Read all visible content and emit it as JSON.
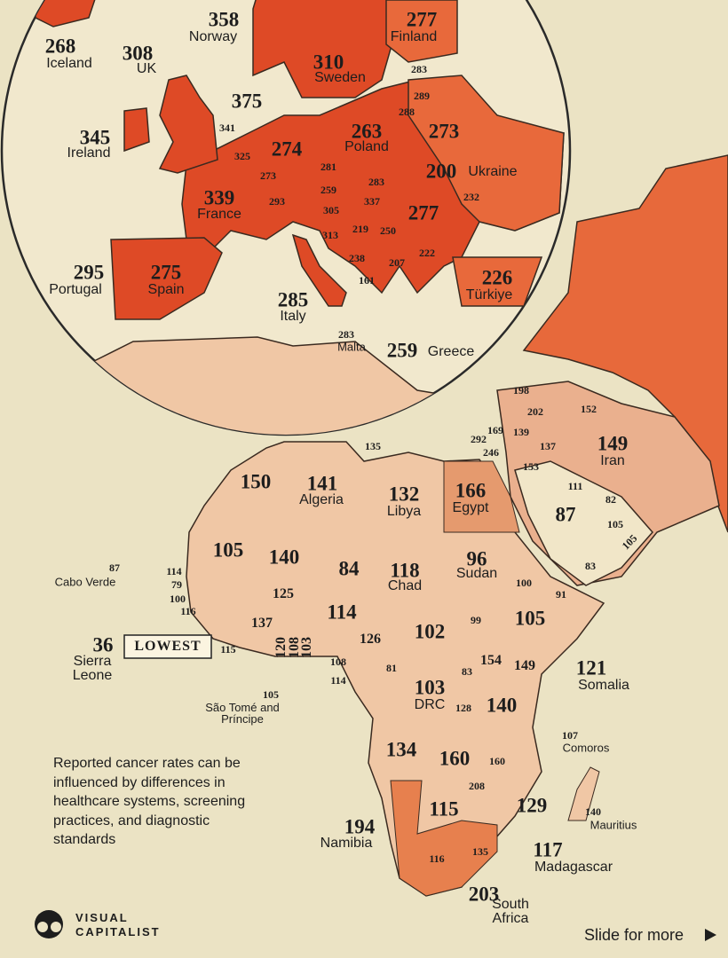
{
  "europe": [
    {
      "value": 268,
      "name": "Iceland"
    },
    {
      "value": 308,
      "name": "UK"
    },
    {
      "value": 358,
      "name": "Norway"
    },
    {
      "value": 310,
      "name": "Sweden"
    },
    {
      "value": 277,
      "name": "Finland"
    },
    {
      "value": 375
    },
    {
      "value": 345,
      "name": "Ireland"
    },
    {
      "value": 263,
      "name": "Poland"
    },
    {
      "value": 273
    },
    {
      "value": 274
    },
    {
      "value": 339,
      "name": "France"
    },
    {
      "value": 200,
      "name": "Ukraine"
    },
    {
      "value": 277
    },
    {
      "value": 295,
      "name": "Portugal"
    },
    {
      "value": 275,
      "name": "Spain"
    },
    {
      "value": 285,
      "name": "Italy"
    },
    {
      "value": 226,
      "name": "Türkiye"
    },
    {
      "value": 283,
      "name": "Malta"
    },
    {
      "value": 259,
      "name": "Greece"
    },
    {
      "value": 283
    },
    {
      "value": 289
    },
    {
      "value": 288
    },
    {
      "value": 341
    },
    {
      "value": 325
    },
    {
      "value": 273
    },
    {
      "value": 281
    },
    {
      "value": 283
    },
    {
      "value": 259
    },
    {
      "value": 293
    },
    {
      "value": 337
    },
    {
      "value": 305
    },
    {
      "value": 232
    },
    {
      "value": 219
    },
    {
      "value": 250
    },
    {
      "value": 313
    },
    {
      "value": 222
    },
    {
      "value": 238
    },
    {
      "value": 207
    },
    {
      "value": 161
    }
  ],
  "africa_middle_east": [
    {
      "value": 198
    },
    {
      "value": 202
    },
    {
      "value": 152
    },
    {
      "value": 169
    },
    {
      "value": 139
    },
    {
      "value": 292
    },
    {
      "value": 246
    },
    {
      "value": 137
    },
    {
      "value": 153
    },
    {
      "value": 149,
      "name": "Iran"
    },
    {
      "value": 111
    },
    {
      "value": 82
    },
    {
      "value": 87
    },
    {
      "value": 105
    },
    {
      "value": 105
    },
    {
      "value": 83
    },
    {
      "value": 135
    },
    {
      "value": 150
    },
    {
      "value": 141,
      "name": "Algeria"
    },
    {
      "value": 132,
      "name": "Libya"
    },
    {
      "value": 166,
      "name": "Egypt"
    },
    {
      "value": 105
    },
    {
      "value": 140
    },
    {
      "value": 84
    },
    {
      "value": 118,
      "name": "Chad"
    },
    {
      "value": 96,
      "name": "Sudan"
    },
    {
      "value": 87,
      "name": "Cabo Verde"
    },
    {
      "value": 114
    },
    {
      "value": 79
    },
    {
      "value": 100
    },
    {
      "value": 116
    },
    {
      "value": 100
    },
    {
      "value": 91
    },
    {
      "value": 125
    },
    {
      "value": 137
    },
    {
      "value": 114
    },
    {
      "value": 99
    },
    {
      "value": 105
    },
    {
      "value": 36,
      "name": "Sierra Leone"
    },
    {
      "value": 115
    },
    {
      "value": 120
    },
    {
      "value": 108
    },
    {
      "value": 103
    },
    {
      "value": 126
    },
    {
      "value": 102
    },
    {
      "value": 121,
      "name": "Somalia"
    },
    {
      "value": 108
    },
    {
      "value": 114
    },
    {
      "value": 81
    },
    {
      "value": 83
    },
    {
      "value": 154
    },
    {
      "value": 149
    },
    {
      "value": 103,
      "name": "DRC"
    },
    {
      "value": 128
    },
    {
      "value": 140
    },
    {
      "value": 105,
      "name": "São Tomé and Príncipe"
    },
    {
      "value": 107,
      "name": "Comoros"
    },
    {
      "value": 134
    },
    {
      "value": 160
    },
    {
      "value": 160
    },
    {
      "value": 208
    },
    {
      "value": 115
    },
    {
      "value": 129
    },
    {
      "value": 194,
      "name": "Namibia"
    },
    {
      "value": 140,
      "name": "Mauritius"
    },
    {
      "value": 117,
      "name": "Madagascar"
    },
    {
      "value": 116
    },
    {
      "value": 135
    },
    {
      "value": 203,
      "name": "South Africa"
    }
  ],
  "lowest_tag": "LOWEST",
  "note": "Reported cancer rates can be influenced by differences in healthcare systems, screening practices, and diagnostic standards",
  "logo": {
    "line1": "VISUAL",
    "line2": "CAPITALIST"
  },
  "slide": "Slide for more"
}
